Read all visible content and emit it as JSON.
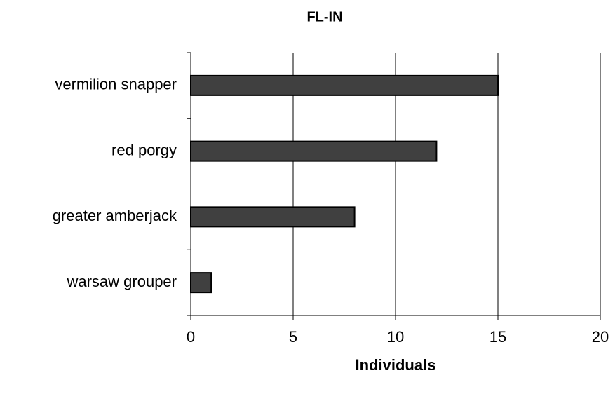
{
  "chart_data": {
    "type": "barh",
    "title": "FL-IN",
    "x_label": "Individuals",
    "categories": [
      "vermilion snapper",
      "red porgy",
      "greater amberjack",
      "warsaw grouper"
    ],
    "values": [
      15,
      12,
      8,
      1
    ],
    "color": "#404040",
    "xlim": [
      0,
      20
    ],
    "xticks": [
      0,
      5,
      10,
      15,
      20
    ],
    "grid": true
  }
}
